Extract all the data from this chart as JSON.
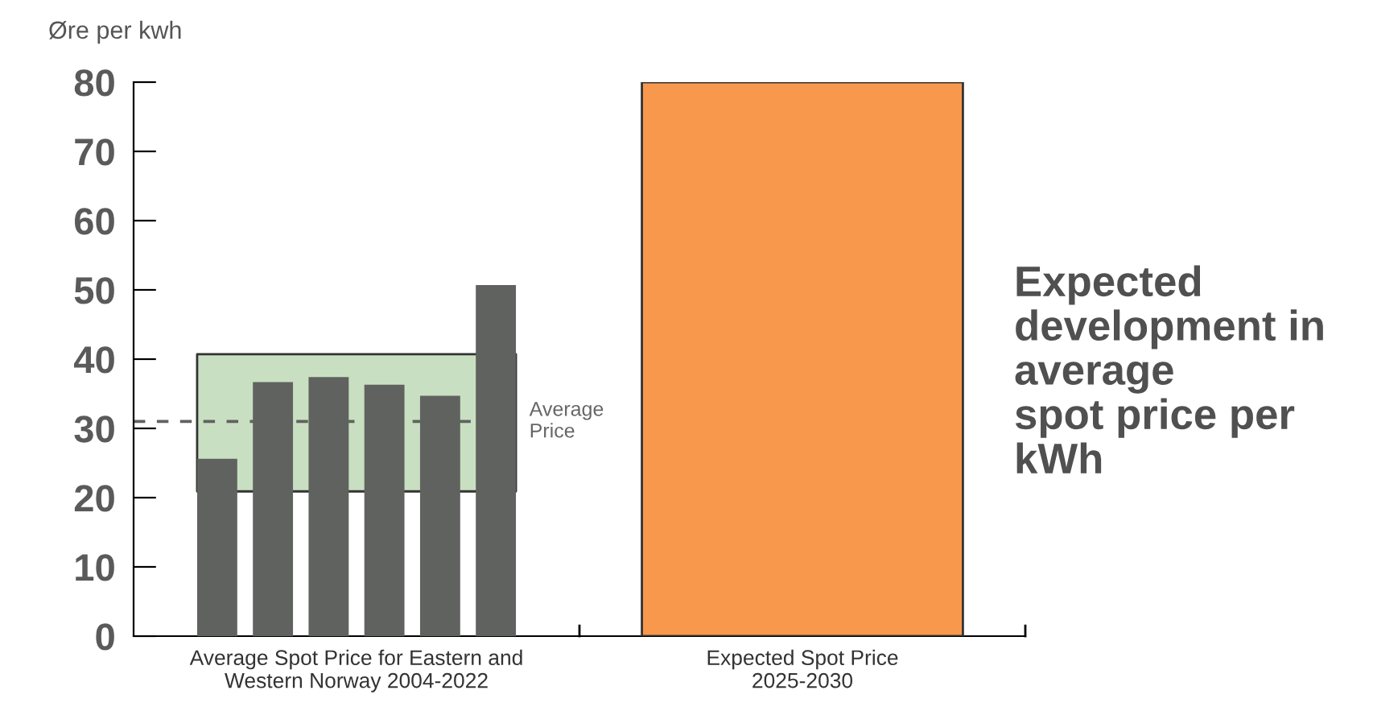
{
  "chart_data": {
    "type": "bar",
    "ylabel": "Øre per kwh",
    "categories": [
      "Average Spot Price for Eastern and\nWestern Norway 2004-2022",
      "Expected Spot Price\n2025-2030"
    ],
    "ylim": [
      0,
      80
    ],
    "yticks": [
      0,
      10,
      20,
      30,
      40,
      50,
      60,
      70,
      80
    ],
    "series": [
      {
        "color": "#606260",
        "values": [
          25.6,
          null
        ]
      },
      {
        "color": "#606260",
        "values": [
          36.7,
          null
        ]
      },
      {
        "color": "#606260",
        "values": [
          37.4,
          null
        ]
      },
      {
        "color": "#606260",
        "values": [
          36.3,
          null
        ]
      },
      {
        "color": "#606260",
        "values": [
          34.7,
          null
        ]
      },
      {
        "color": "#606260",
        "values": [
          50.7,
          null
        ]
      },
      {
        "color": "#f7984d",
        "values": [
          null,
          80
        ]
      }
    ],
    "bands": [
      {
        "axis": "y",
        "from": 20.9,
        "to": 40.7,
        "color": "#c9dfc1"
      }
    ],
    "ref_lines": [
      {
        "axis": "y",
        "value": 31,
        "label": "Average\nPrice",
        "color": "#606260",
        "line_style": "dashed"
      }
    ],
    "annotations": [
      "Expected\ndevelopment in\naverage\nspot price per\nkWh"
    ],
    "grid": false,
    "legend": false
  }
}
